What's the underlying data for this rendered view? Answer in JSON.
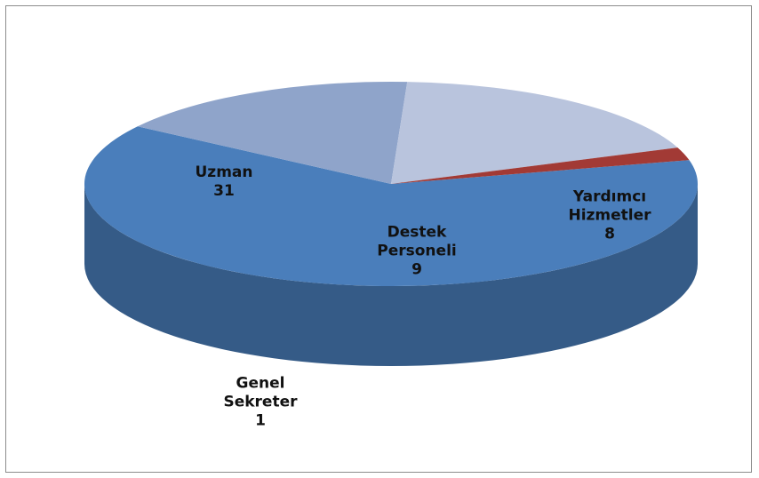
{
  "chart_data": {
    "type": "pie3d",
    "categories": [
      "Uzman",
      "Yardımcı Hizmetler",
      "Destek Personeli",
      "Genel Sekreter"
    ],
    "values": [
      31,
      8,
      9,
      1
    ],
    "colors": [
      "#4a7ebb",
      "#8fa4ca",
      "#b9c4dd",
      "#a23a35"
    ]
  }
}
